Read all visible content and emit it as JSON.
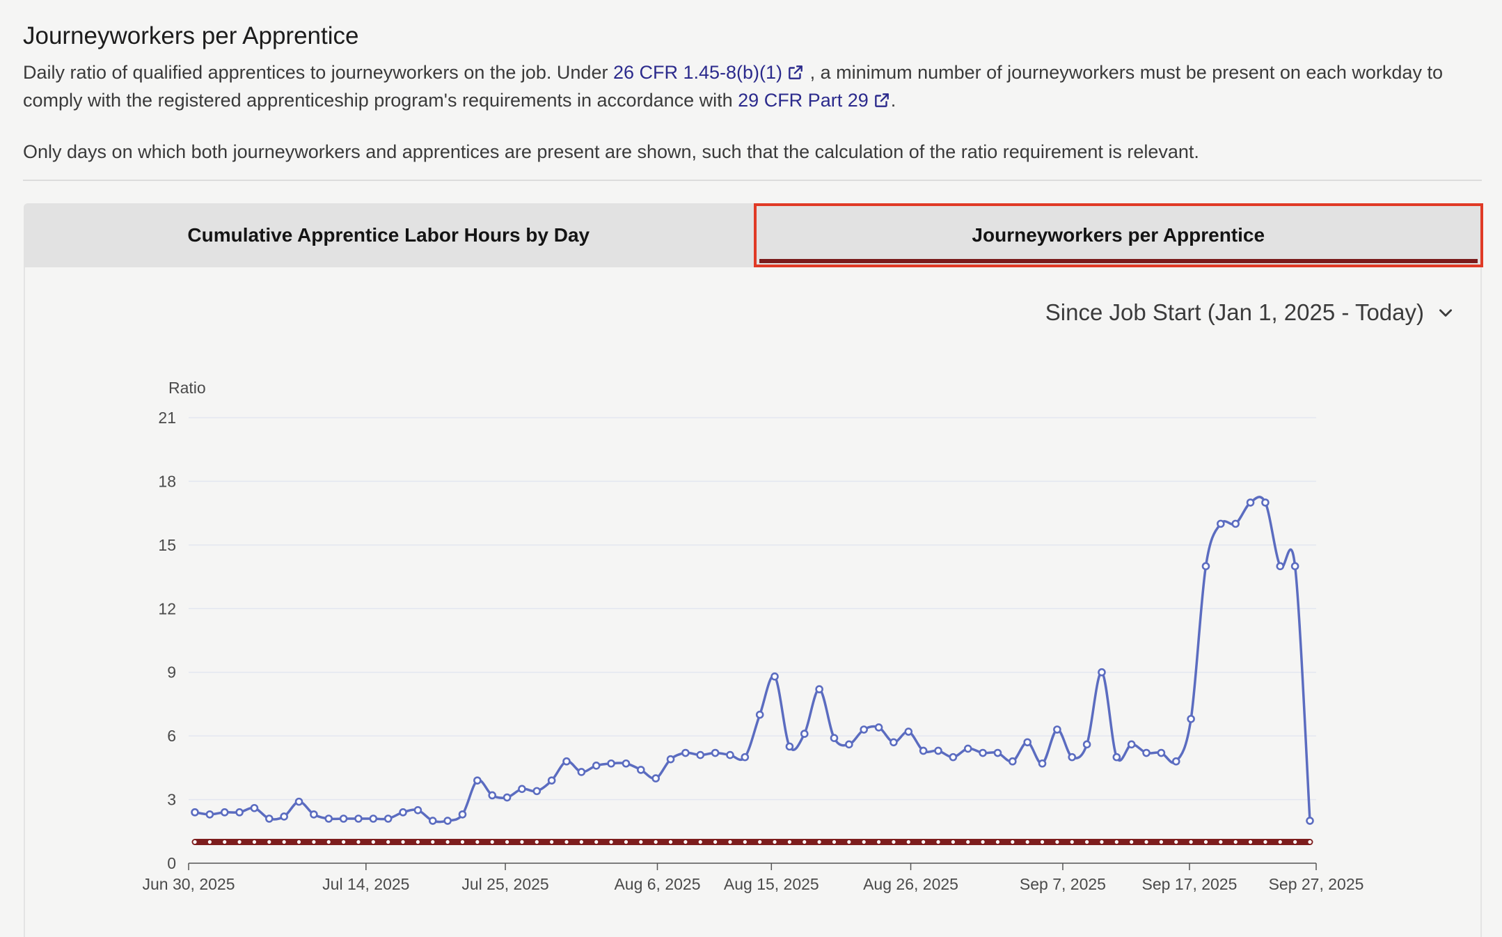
{
  "header": {
    "title": "Journeyworkers per Apprentice",
    "desc_part1": "Daily ratio of qualified apprentices to journeyworkers on the job. Under ",
    "link1": "26 CFR 1.45-8(b)(1)",
    "desc_part2": " , a minimum number of journeyworkers must be present on each workday to comply with the registered apprenticeship program's requirements in accordance with ",
    "link2": "29 CFR Part 29",
    "desc_part3": ".",
    "note": "Only days on which both journeyworkers and apprentices are present are shown, such that the calculation of the ratio requirement is relevant."
  },
  "tabs": [
    {
      "label": "Cumulative Apprentice Labor Hours by Day",
      "active": false
    },
    {
      "label": "Journeyworkers per Apprentice",
      "active": true
    }
  ],
  "range_select": {
    "label": "Since Job Start (Jan 1, 2025 - Today)",
    "icon": "chevron-down-icon"
  },
  "colors": {
    "series": "#5b6cc0",
    "requirement": "#7d1d1d",
    "grid": "#e3e6f0",
    "tab_highlight": "#e03a26"
  },
  "chart_data": {
    "type": "line",
    "ylabel": "Ratio",
    "ylim": [
      0,
      21
    ],
    "yticks": [
      "0",
      "3",
      "6",
      "9",
      "12",
      "15",
      "18",
      "21"
    ],
    "x_ticks": [
      {
        "label": "Jun 30, 2025",
        "date": "2025-06-30"
      },
      {
        "label": "Jul 14, 2025",
        "date": "2025-07-14"
      },
      {
        "label": "Jul 25, 2025",
        "date": "2025-07-25"
      },
      {
        "label": "Aug 6, 2025",
        "date": "2025-08-06"
      },
      {
        "label": "Aug 15, 2025",
        "date": "2025-08-15"
      },
      {
        "label": "Aug 26, 2025",
        "date": "2025-08-26"
      },
      {
        "label": "Sep 7, 2025",
        "date": "2025-09-07"
      },
      {
        "label": "Sep 17, 2025",
        "date": "2025-09-17"
      },
      {
        "label": "Sep 27, 2025",
        "date": "2025-09-27"
      }
    ],
    "grid": true,
    "series": [
      {
        "values": [
          2.4,
          2.3,
          2.4,
          2.4,
          2.6,
          2.1,
          2.2,
          2.9,
          2.3,
          2.1,
          2.1,
          2.1,
          2.1,
          2.1,
          2.4,
          2.5,
          2.0,
          2.0,
          2.3,
          3.9,
          3.2,
          3.1,
          3.5,
          3.4,
          3.9,
          4.8,
          4.3,
          4.6,
          4.7,
          4.7,
          4.4,
          4.0,
          4.9,
          5.2,
          5.1,
          5.2,
          5.1,
          5.0,
          7.0,
          8.8,
          5.5,
          6.1,
          8.2,
          5.9,
          5.6,
          6.3,
          6.4,
          5.7,
          6.2,
          5.3,
          5.3,
          5.0,
          5.4,
          5.2,
          5.2,
          4.8,
          5.7,
          4.7,
          6.3,
          5.0,
          5.6,
          9.0,
          5.0,
          5.6,
          5.2,
          5.2,
          4.8,
          6.8,
          14.0,
          16.0,
          16.0,
          17.0,
          17.0,
          14.0,
          14.0,
          2.0
        ]
      },
      {
        "role": "requirement",
        "constant": 1.0
      }
    ]
  }
}
